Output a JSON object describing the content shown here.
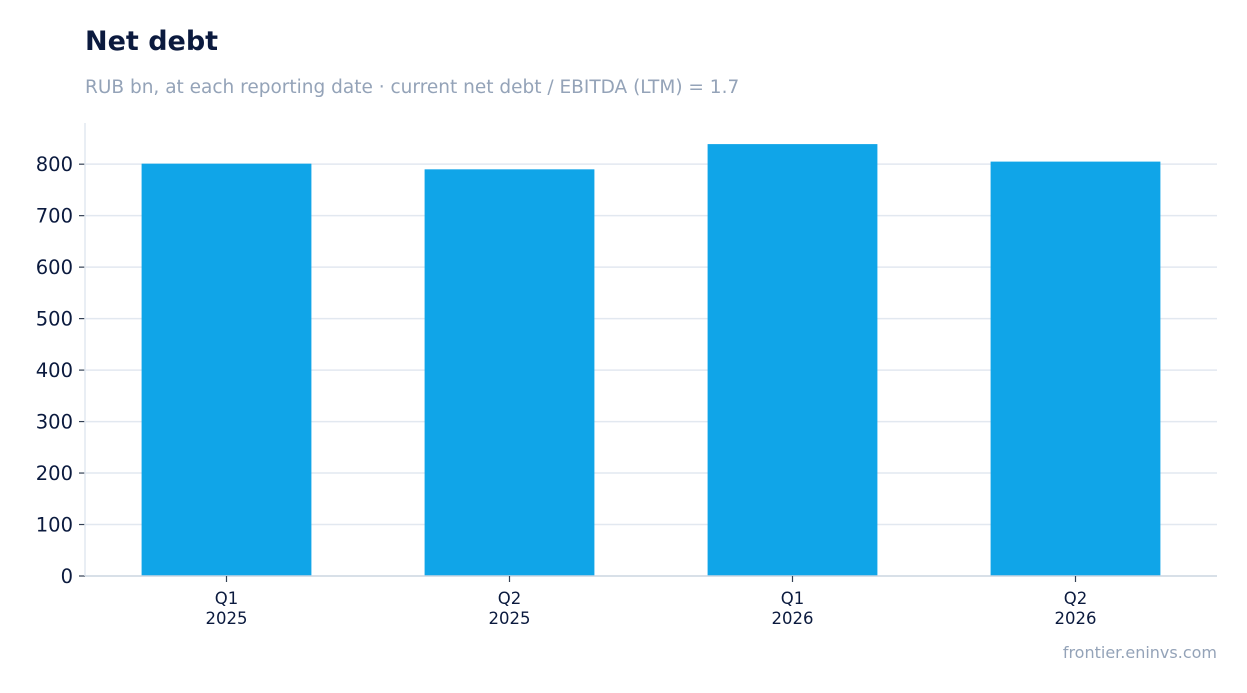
{
  "chart_data": {
    "type": "bar",
    "title": "Net debt",
    "subtitle": "RUB bn, at each reporting date · current net debt / EBITDA (LTM) = 1.7",
    "categories": [
      [
        "Q1",
        "2025"
      ],
      [
        "Q2",
        "2025"
      ],
      [
        "Q1",
        "2026"
      ],
      [
        "Q2",
        "2026"
      ]
    ],
    "values": [
      801,
      790,
      839,
      805
    ],
    "xlabel": "",
    "ylabel": "",
    "ylim": [
      0,
      880
    ],
    "yticks": [
      0,
      100,
      200,
      300,
      400,
      500,
      600,
      700,
      800
    ],
    "grid": true,
    "bar_color": "#10a5e8",
    "grid_color": "#e2e8f0",
    "text_color": "#0b1a3e"
  },
  "source": "frontier.eninvs.com"
}
